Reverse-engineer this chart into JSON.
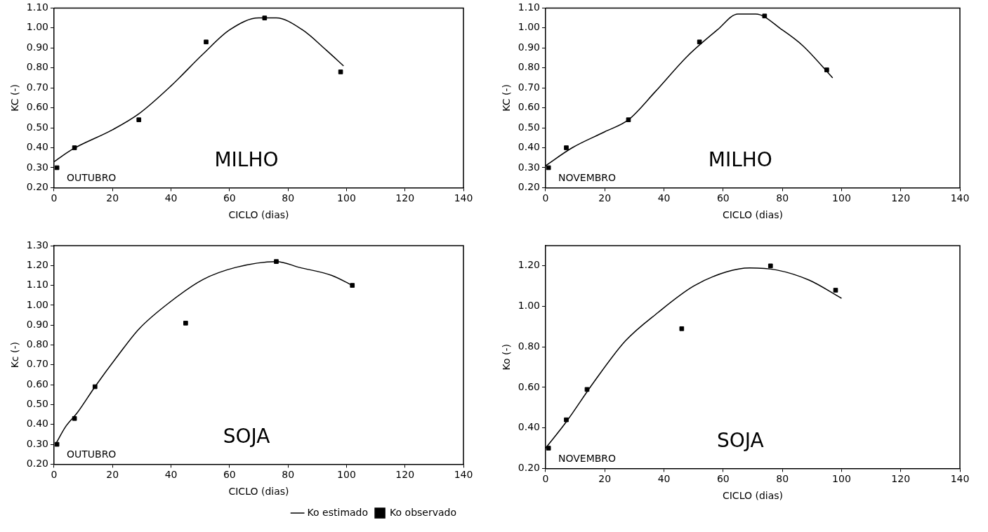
{
  "chart_data": [
    {
      "type": "line",
      "xlabel": "CICLO (dias)",
      "ylabel": "KC (-)",
      "annotations": [
        "OUTUBRO",
        "MILHO"
      ],
      "xlim": [
        0,
        140
      ],
      "xticks": [
        0,
        20,
        40,
        60,
        80,
        100,
        120,
        140
      ],
      "ylim": [
        0.2,
        1.1
      ],
      "yticks": [
        {
          "value": 0.2,
          "label": "0.20"
        },
        {
          "value": 0.3,
          "label": "0.30"
        },
        {
          "value": 0.4,
          "label": "0.40"
        },
        {
          "value": 0.5,
          "label": "0.50"
        },
        {
          "value": 0.6,
          "label": "0.60"
        },
        {
          "value": 0.7,
          "label": "0.70"
        },
        {
          "value": 0.8,
          "label": "0.80"
        },
        {
          "value": 0.9,
          "label": "0.90"
        },
        {
          "value": 1.0,
          "label": "1.00"
        },
        {
          "value": 1.1,
          "label": "1.10"
        }
      ],
      "grid": false,
      "legend": false,
      "series": [
        {
          "type": "line",
          "color": "#000000",
          "marker": "none",
          "line_style": "solid",
          "x": [
            0,
            6,
            20,
            29,
            40,
            51,
            60,
            70,
            76,
            85,
            93,
            99
          ],
          "values": [
            0.33,
            0.39,
            0.49,
            0.57,
            0.71,
            0.87,
            0.99,
            1.05,
            1.05,
            0.99,
            0.89,
            0.81
          ]
        },
        {
          "type": "scatter",
          "color": "#000000",
          "marker": "square",
          "x": [
            1,
            7,
            29,
            52,
            72,
            98
          ],
          "values": [
            0.3,
            0.4,
            0.54,
            0.93,
            1.05,
            0.78
          ]
        }
      ]
    },
    {
      "type": "line",
      "xlabel": "CICLO (dias)",
      "ylabel": "KC (-)",
      "annotations": [
        "NOVEMBRO",
        "MILHO"
      ],
      "xlim": [
        0,
        140
      ],
      "xticks": [
        0,
        20,
        40,
        60,
        80,
        100,
        120,
        140
      ],
      "ylim": [
        0.2,
        1.1
      ],
      "yticks": [
        {
          "value": 0.2,
          "label": "0.20"
        },
        {
          "value": 0.3,
          "label": "0.30"
        },
        {
          "value": 0.4,
          "label": "0.40"
        },
        {
          "value": 0.5,
          "label": "0.50"
        },
        {
          "value": 0.6,
          "label": "0.60"
        },
        {
          "value": 0.7,
          "label": "0.70"
        },
        {
          "value": 0.8,
          "label": "0.80"
        },
        {
          "value": 0.9,
          "label": "0.90"
        },
        {
          "value": 1.0,
          "label": "1.00"
        },
        {
          "value": 1.1,
          "label": "1.10"
        }
      ],
      "grid": false,
      "legend": false,
      "series": [
        {
          "type": "line",
          "color": "#000000",
          "marker": "none",
          "line_style": "solid",
          "x": [
            0,
            9,
            20,
            28,
            37,
            48,
            58,
            65,
            71,
            80,
            87,
            97
          ],
          "values": [
            0.31,
            0.4,
            0.48,
            0.54,
            0.68,
            0.86,
            0.99,
            1.07,
            1.07,
            0.99,
            0.91,
            0.75
          ]
        },
        {
          "type": "scatter",
          "color": "#000000",
          "marker": "square",
          "x": [
            1,
            7,
            28,
            52,
            74,
            95
          ],
          "values": [
            0.3,
            0.4,
            0.54,
            0.93,
            1.06,
            0.79
          ]
        }
      ]
    },
    {
      "type": "line",
      "xlabel": "CICLO (dias)",
      "ylabel": "Kc (-)",
      "annotations": [
        "OUTUBRO",
        "SOJA"
      ],
      "xlim": [
        0,
        140
      ],
      "xticks": [
        0,
        20,
        40,
        60,
        80,
        100,
        120,
        140
      ],
      "ylim": [
        0.2,
        1.3
      ],
      "yticks": [
        {
          "value": 0.2,
          "label": "0.20"
        },
        {
          "value": 0.3,
          "label": "0.30"
        },
        {
          "value": 0.4,
          "label": "0.40"
        },
        {
          "value": 0.5,
          "label": "0.50"
        },
        {
          "value": 0.6,
          "label": "0.60"
        },
        {
          "value": 0.7,
          "label": "0.70"
        },
        {
          "value": 0.8,
          "label": "0.80"
        },
        {
          "value": 0.9,
          "label": "0.90"
        },
        {
          "value": 1.0,
          "label": "1.00"
        },
        {
          "value": 1.1,
          "label": "1.10"
        },
        {
          "value": 1.2,
          "label": "1.20"
        },
        {
          "value": 1.3,
          "label": "1.30"
        }
      ],
      "grid": false,
      "legend": "bottom",
      "series": [
        {
          "type": "line",
          "name": "Ko estimado",
          "color": "#000000",
          "marker": "none",
          "line_style": "solid",
          "x": [
            0.5,
            4,
            8,
            14,
            22,
            29,
            40,
            51,
            62,
            76,
            84,
            95,
            102
          ],
          "values": [
            0.3,
            0.39,
            0.46,
            0.59,
            0.75,
            0.88,
            1.02,
            1.13,
            1.19,
            1.22,
            1.19,
            1.15,
            1.1
          ]
        },
        {
          "type": "scatter",
          "name": "Ko observado",
          "color": "#000000",
          "marker": "square",
          "x": [
            1,
            7,
            14,
            45,
            76,
            102
          ],
          "values": [
            0.3,
            0.43,
            0.59,
            0.91,
            1.22,
            1.1
          ]
        }
      ]
    },
    {
      "type": "line",
      "xlabel": "CICLO (dias)",
      "ylabel": "Ko (-)",
      "annotations": [
        "NOVEMBRO",
        "SOJA"
      ],
      "xlim": [
        0,
        140
      ],
      "xticks": [
        0,
        20,
        40,
        60,
        80,
        100,
        120,
        140
      ],
      "ylim": [
        0.2,
        1.3
      ],
      "yticks": [
        {
          "value": 0.2,
          "label": "0.20"
        },
        {
          "value": 0.4,
          "label": "0.40"
        },
        {
          "value": 0.6,
          "label": "0.60"
        },
        {
          "value": 0.8,
          "label": "0.80"
        },
        {
          "value": 1.0,
          "label": "1.00"
        },
        {
          "value": 1.2,
          "label": "1.20"
        }
      ],
      "grid": false,
      "legend": false,
      "series": [
        {
          "type": "line",
          "color": "#000000",
          "marker": "none",
          "line_style": "solid",
          "x": [
            0,
            7,
            16,
            27,
            38,
            50,
            61,
            69,
            78,
            89,
            100
          ],
          "values": [
            0.3,
            0.43,
            0.62,
            0.83,
            0.97,
            1.1,
            1.17,
            1.19,
            1.18,
            1.13,
            1.04
          ]
        },
        {
          "type": "scatter",
          "color": "#000000",
          "marker": "square",
          "x": [
            1,
            7,
            14,
            46,
            76,
            98
          ],
          "values": [
            0.3,
            0.44,
            0.59,
            0.89,
            1.2,
            1.08
          ]
        }
      ]
    }
  ]
}
